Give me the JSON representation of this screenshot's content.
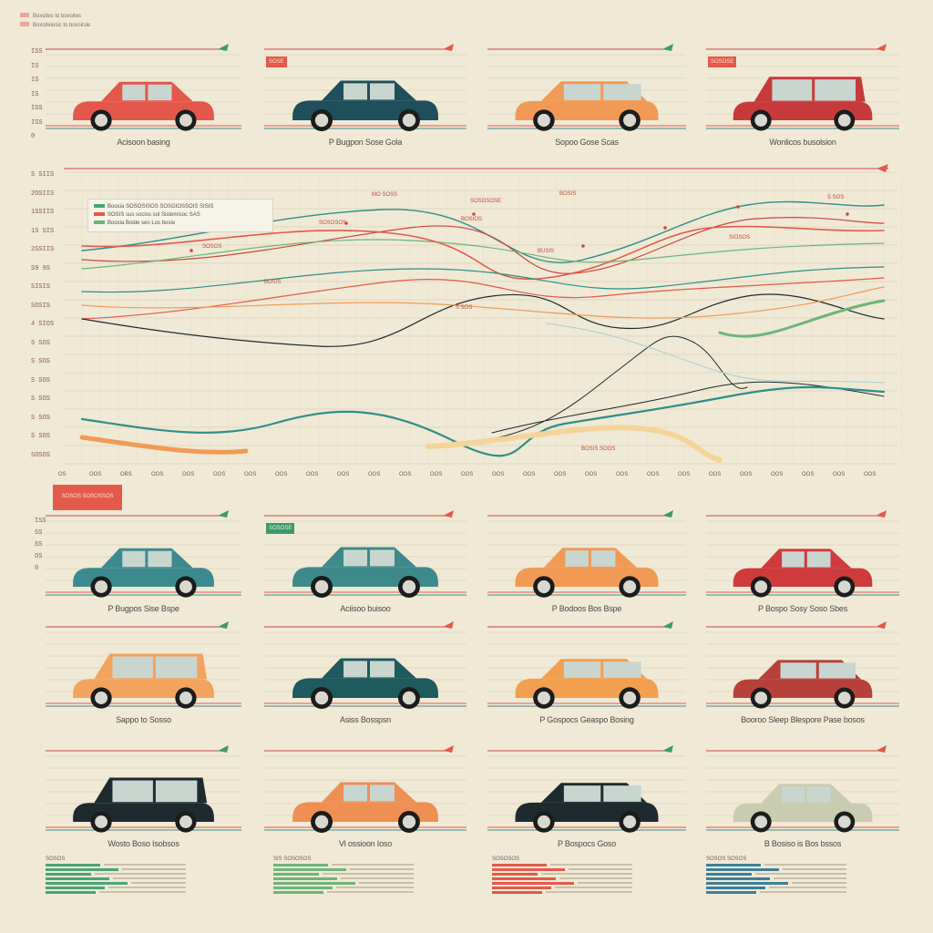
{
  "colors": {
    "background": "#efe9d6",
    "accent_red": "#e35a4b",
    "teal": "#2f8f86",
    "green": "#6eb57a",
    "orange": "#f19a55",
    "dark": "#1f2a2e"
  },
  "header": {
    "line1": "Boxsites to boxsites",
    "line2": "Boxsiteiosic to boxsitsle"
  },
  "top_panels": [
    {
      "caption": "Acisoon basing",
      "car_color": "#e4574b",
      "car_type": "sedan"
    },
    {
      "caption": "P Bugpon Sose Gola",
      "car_color": "#1f4f5a",
      "car_type": "sedan",
      "tag": "SOSE"
    },
    {
      "caption": "Sopoo Gose Scas",
      "car_color": "#f19a55",
      "car_type": "hatch"
    },
    {
      "caption": "Wonlicos busolsion",
      "car_color": "#c73a3c",
      "car_type": "wagon",
      "tag": "SOSOSE"
    }
  ],
  "top_ticks": [
    "ISS",
    "IS",
    "IS",
    "IS",
    "ISS",
    "ISS",
    "0"
  ],
  "main_chart": {
    "ytick_labels": [
      "S SIIS",
      "2OSIIS",
      "1SSIIS",
      "1S SIS",
      "2SSIIS",
      "S9 9S",
      "SISIS",
      "SOSIS",
      "4 SIOS",
      "S SOS",
      "S SOS",
      "S SOS",
      "S SOS",
      "S SOS",
      "S SOS",
      "SOSOS"
    ],
    "xtick_labels": [
      "OS",
      "OOS",
      "OBS",
      "OOS",
      "OOS",
      "OOS",
      "OOS",
      "OOS",
      "OOS",
      "OOS",
      "OOS",
      "OOS",
      "OOS",
      "OOS",
      "OOS",
      "OOS",
      "OOS",
      "OOS",
      "OOS",
      "OOS",
      "OOS",
      "OOS",
      "OOS",
      "OOS",
      "OOS",
      "OOS",
      "OOS"
    ],
    "legend_lines": [
      "Boosia  SOSOSISOS SOSGIOSSOIS SISIS",
      "SOSIS  sus socios sol Sistemisoc SAS",
      "Boosia  Bolde seo Los bosie"
    ],
    "annotations": [
      "MO SOSS",
      "SOSOSOSE",
      "BOSIS",
      "S SOS",
      "SOSOSOS",
      "BOSIOS",
      "SOSOS",
      "BUSIS",
      "SIOSOS",
      "BOSIS",
      "S SOS",
      "BOSIS SOOS"
    ]
  },
  "section_tag": "SOSOS SOSOSSOS",
  "grid_ticks": [
    "ISS",
    "SS",
    "SS",
    "OS",
    "0"
  ],
  "row2": [
    {
      "caption": "P Bugpos Sise Bspe",
      "car_color": "#3d8a8e",
      "car_type": "sedan"
    },
    {
      "caption": "Aciisoo buisoo",
      "car_color": "#3e8a8a",
      "car_type": "sedan",
      "tag": "SOSOSE"
    },
    {
      "caption": "P Bodoos Bos Bspe",
      "car_color": "#f19a55",
      "car_type": "sedan"
    },
    {
      "caption": "P Bospo Sosy Soso Sbes",
      "car_color": "#cf3b3d",
      "car_type": "sedan"
    }
  ],
  "row3": [
    {
      "caption": "Sappo to Sosso",
      "car_color": "#f2a45e",
      "car_type": "wagon"
    },
    {
      "caption": "Asiss Bosspsn",
      "car_color": "#1e5a5e",
      "car_type": "sedan"
    },
    {
      "caption": "P Gospocs Geaspo Bosing",
      "car_color": "#f2a04f",
      "car_type": "hatch"
    },
    {
      "caption": "Booroo Sleep Blespore Pase bosos",
      "car_color": "#b8403a",
      "car_type": "hatch"
    }
  ],
  "row4": [
    {
      "caption": "Wosto Boso Isobsos",
      "car_color": "#1f2a2e",
      "car_type": "suv"
    },
    {
      "caption": "Vl ossioon Ioso",
      "car_color": "#ef8f54",
      "car_type": "sedan"
    },
    {
      "caption": "P Bospocs Goso",
      "car_color": "#1f2a2e",
      "car_type": "hatch"
    },
    {
      "caption": "B Bosiso is Bos bssos",
      "car_color": "#c9ccb0",
      "car_type": "sedan"
    }
  ],
  "footer_blocks": [
    {
      "color": "#4aa476",
      "label": "SOSOS"
    },
    {
      "color": "#6eb57a",
      "label": "SIS SOSOSOS"
    },
    {
      "color": "#e35a4b",
      "label": "SOSOSOS"
    },
    {
      "color": "#3d7f99",
      "label": "SOSOS SOSOS"
    }
  ]
}
